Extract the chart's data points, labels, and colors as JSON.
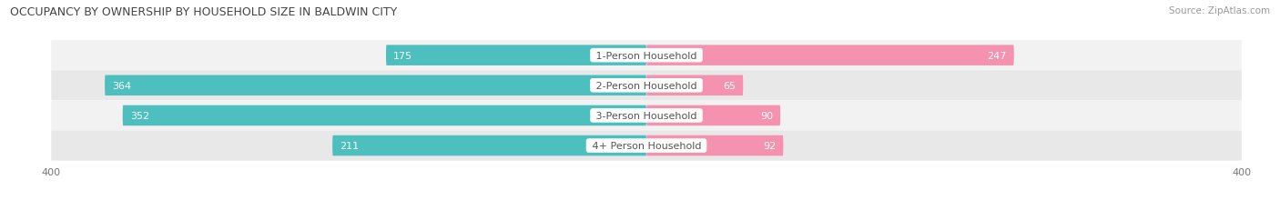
{
  "title": "OCCUPANCY BY OWNERSHIP BY HOUSEHOLD SIZE IN BALDWIN CITY",
  "source": "Source: ZipAtlas.com",
  "categories": [
    "1-Person Household",
    "2-Person Household",
    "3-Person Household",
    "4+ Person Household"
  ],
  "owner_values": [
    175,
    364,
    352,
    211
  ],
  "renter_values": [
    247,
    65,
    90,
    92
  ],
  "max_axis": 400,
  "owner_color": "#4DBFBF",
  "renter_color": "#F492B0",
  "row_bg_colors": [
    "#F2F2F2",
    "#E8E8E8",
    "#F2F2F2",
    "#E8E8E8"
  ],
  "center_label_color": "#555555",
  "title_fontsize": 9,
  "source_fontsize": 7.5,
  "bar_label_fontsize": 8,
  "category_fontsize": 8,
  "axis_label_fontsize": 8,
  "legend_fontsize": 8,
  "badge_threshold": 50
}
